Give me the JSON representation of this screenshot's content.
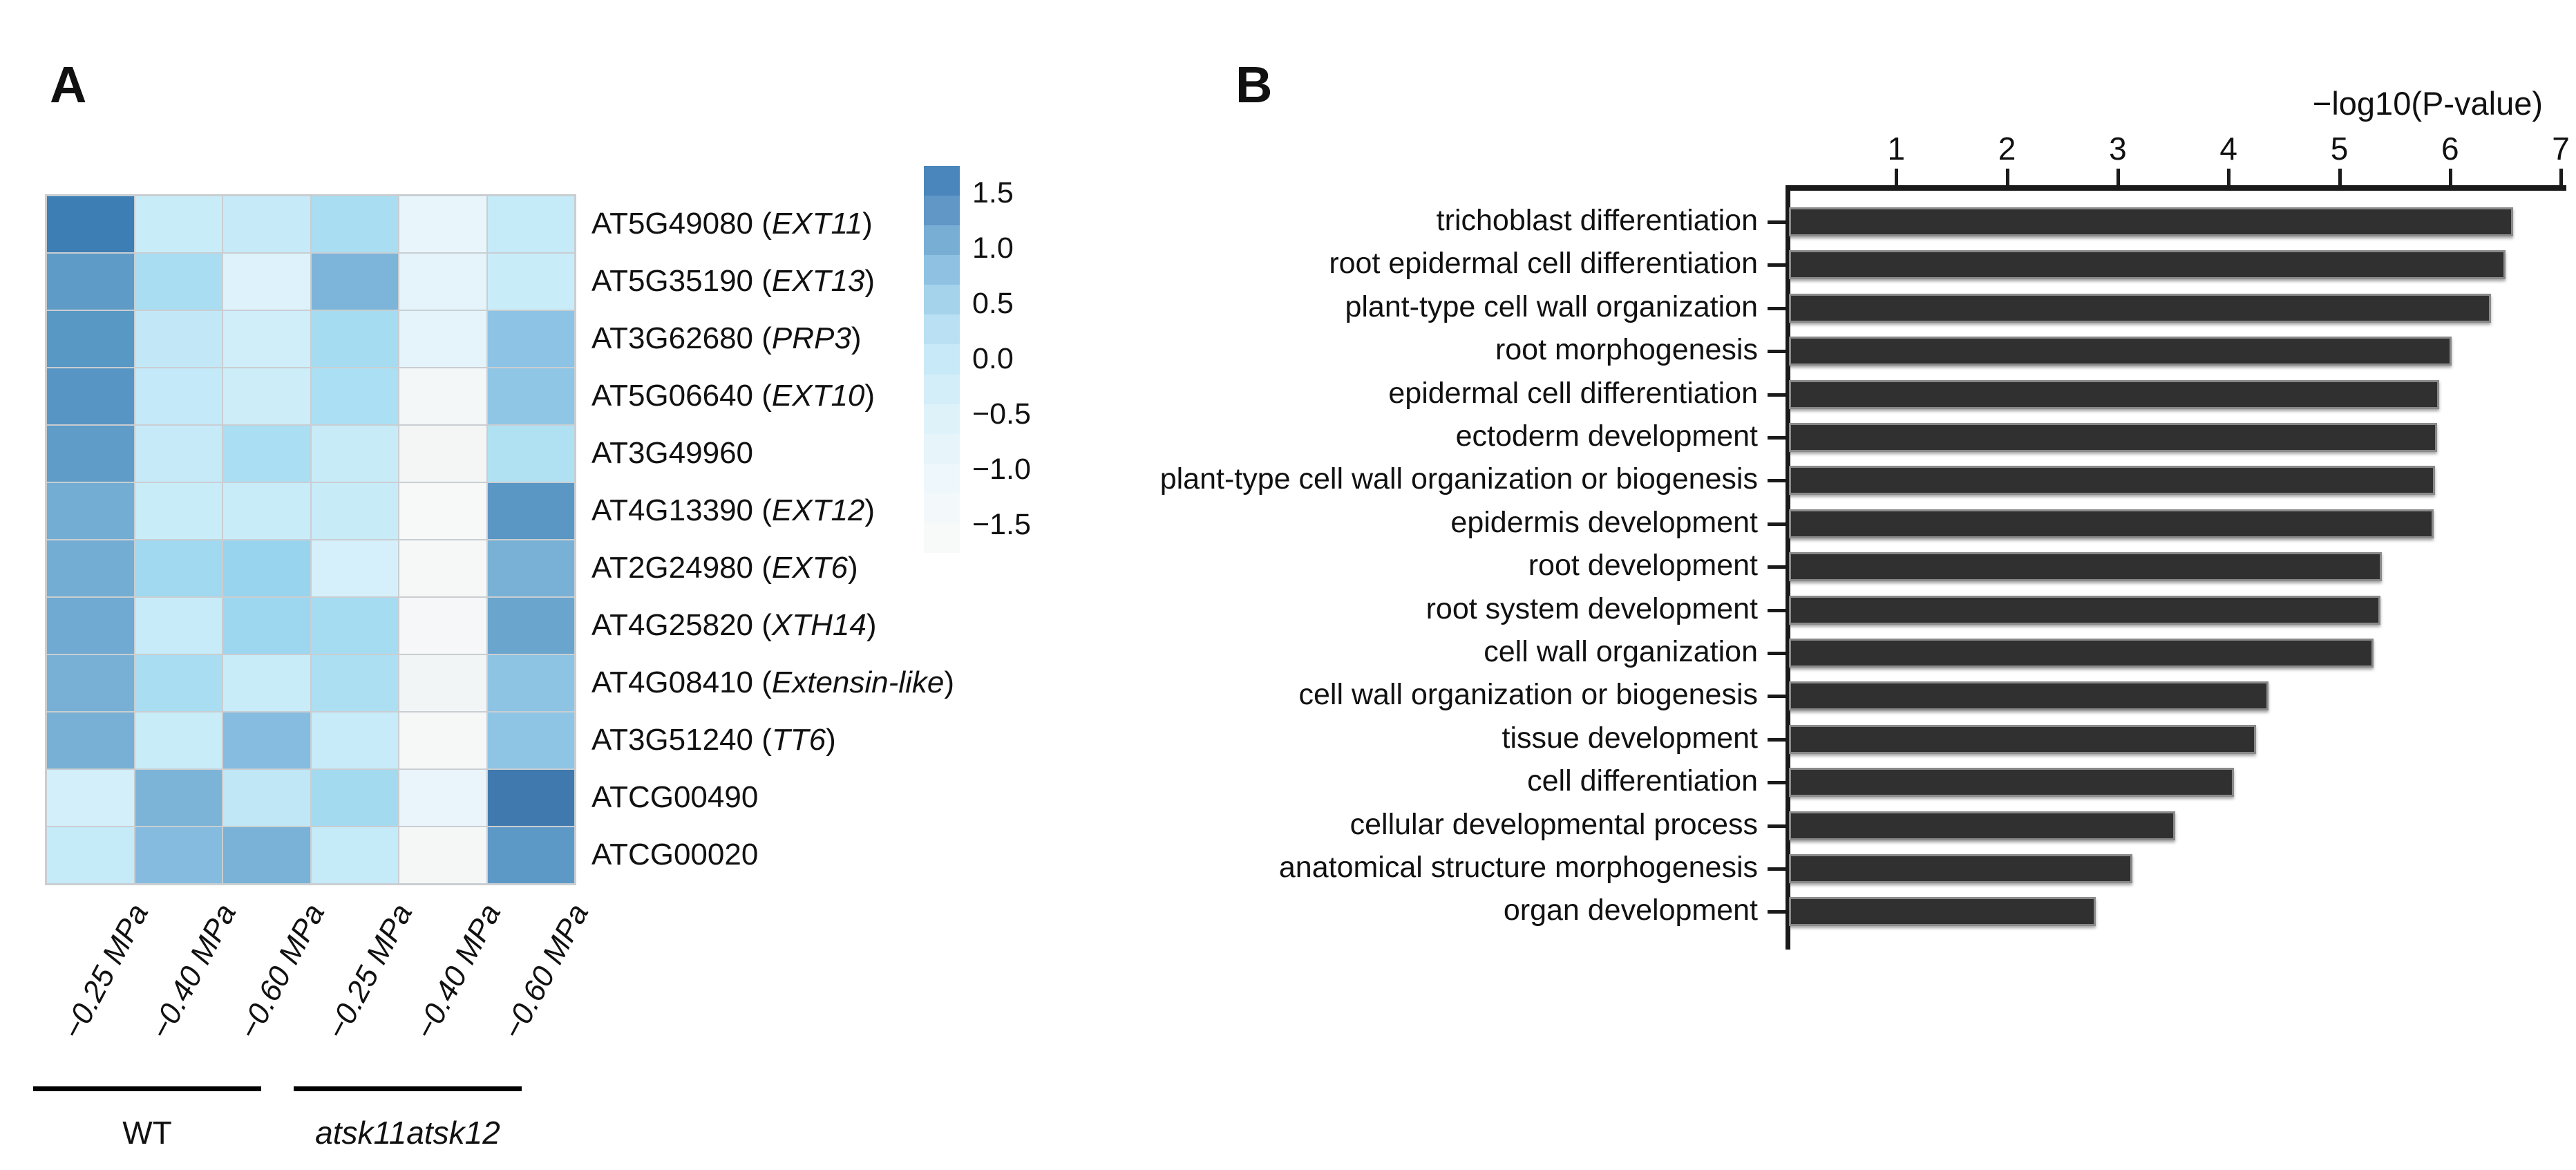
{
  "panel_a": {
    "label": "A",
    "columns": [
      "−0.25 MPa",
      "−0.40 MPa",
      "−0.60 MPa",
      "−0.25 MPa",
      "−0.40 MPa",
      "−0.60 MPa"
    ],
    "groups": [
      {
        "label": "WT",
        "italic": false
      },
      {
        "label": "atsk11atsk12",
        "italic": true
      }
    ],
    "rows": [
      {
        "locus": "AT5G49080",
        "gene": "EXT11",
        "cells": [
          "#3d7eb4",
          "#c9ecf9",
          "#c7eaf8",
          "#a8ddf2",
          "#e8f6fb",
          "#c5eaf8"
        ],
        "values": [
          1.8,
          0.2,
          0.2,
          0.5,
          -0.4,
          0.2
        ]
      },
      {
        "locus": "AT5G35190",
        "gene": "EXT13",
        "cells": [
          "#5f9bc7",
          "#a9def2",
          "#ddf2fa",
          "#7db4da",
          "#e4f4fa",
          "#c9ecf9"
        ],
        "values": [
          1.2,
          0.5,
          -0.1,
          1.0,
          -0.3,
          0.2
        ]
      },
      {
        "locus": "AT3G62680",
        "gene": "PRP3",
        "cells": [
          "#5898c5",
          "#c2e8f7",
          "#cfeef9",
          "#a5dcf1",
          "#e5f4fb",
          "#8dc3e4"
        ],
        "values": [
          1.3,
          0.3,
          0.1,
          0.5,
          -0.3,
          0.8
        ]
      },
      {
        "locus": "AT5G06640",
        "gene": "EXT10",
        "cells": [
          "#5796c4",
          "#c4e9f8",
          "#cdedf9",
          "#abdff3",
          "#f4f7f7",
          "#8fc5e5"
        ],
        "values": [
          1.3,
          0.2,
          0.1,
          0.4,
          -1.1,
          0.7
        ]
      },
      {
        "locus": "AT3G49960",
        "gene": null,
        "cells": [
          "#5f9cc8",
          "#c6eaf8",
          "#aadef2",
          "#c8ebf8",
          "#f4f6f6",
          "#b0e1f3"
        ],
        "values": [
          1.2,
          0.2,
          0.5,
          0.2,
          -1.1,
          0.4
        ]
      },
      {
        "locus": "AT4G13390",
        "gene": "EXT12",
        "cells": [
          "#74add3",
          "#c9ecf9",
          "#c9ecf9",
          "#c8ebf8",
          "#f7f9f9",
          "#5b97c4"
        ],
        "values": [
          1.1,
          0.2,
          0.2,
          0.2,
          -1.3,
          1.3
        ]
      },
      {
        "locus": "AT2G24980",
        "gene": "EXT6",
        "cells": [
          "#74add3",
          "#a0d9f0",
          "#98d4ed",
          "#d5f0fa",
          "#f6f8f8",
          "#78b1d5"
        ],
        "values": [
          1.1,
          0.6,
          0.6,
          0.0,
          -1.2,
          1.0
        ]
      },
      {
        "locus": "AT4G25820",
        "gene": "XTH14",
        "cells": [
          "#70a9d1",
          "#c7ebf8",
          "#9dd7ef",
          "#a6dcf1",
          "#f5f7f8",
          "#6aa5ce"
        ],
        "values": [
          1.1,
          0.2,
          0.6,
          0.5,
          -1.2,
          1.1
        ]
      },
      {
        "locus": "AT4G08410",
        "gene": "Extensin-like",
        "cells": [
          "#77b0d4",
          "#a8ddf2",
          "#c9ecf9",
          "#addff3",
          "#f2f5f6",
          "#8dc4e4"
        ],
        "values": [
          1.0,
          0.5,
          0.2,
          0.4,
          -0.9,
          0.8
        ]
      },
      {
        "locus": "AT3G51240",
        "gene": "TT6",
        "cells": [
          "#77b0d4",
          "#c9ecf9",
          "#85bcdf",
          "#c7ebf8",
          "#f6f8f8",
          "#8ec5e5"
        ],
        "values": [
          1.0,
          0.2,
          0.9,
          0.2,
          -1.3,
          0.7
        ]
      },
      {
        "locus": "ATCG00490",
        "gene": null,
        "cells": [
          "#d2effa",
          "#7cb4d8",
          "#bfe7f6",
          "#a3daf0",
          "#e9f5fb",
          "#4079ae"
        ],
        "values": [
          0.1,
          1.0,
          0.3,
          0.5,
          -0.4,
          1.7
        ]
      },
      {
        "locus": "ATCG00020",
        "gene": null,
        "cells": [
          "#c5eaf8",
          "#84bbde",
          "#79b2d6",
          "#c5eaf8",
          "#f5f7f7",
          "#5d99c6"
        ],
        "values": [
          0.2,
          0.9,
          1.0,
          0.2,
          -1.1,
          1.3
        ]
      }
    ],
    "colorbar": {
      "tick_labels": [
        "1.5",
        "1.0",
        "0.5",
        "0.0",
        "−0.5",
        "−1.0",
        "−1.5"
      ],
      "tick_values": [
        1.5,
        1.0,
        0.5,
        0.0,
        -0.5,
        -1.0,
        -1.5
      ],
      "range": [
        1.75,
        -1.75
      ],
      "stops": [
        "#4a86bb",
        "#6097c7",
        "#79aed4",
        "#8fc2e2",
        "#a5d3ec",
        "#b9e0f3",
        "#c8e9f7",
        "#d4eef9",
        "#def2fa",
        "#e7f5fb",
        "#eef8fc",
        "#f3f9fb",
        "#f8fafa"
      ]
    }
  },
  "panel_b": {
    "label": "B",
    "axis_title": "−log10(P-value)",
    "x_ticks": [
      "1",
      "2",
      "3",
      "4",
      "5",
      "6",
      "7"
    ],
    "bar_color": "#303030",
    "bars": [
      {
        "label": "trichoblast differentiation",
        "value": 6.54
      },
      {
        "label": "root epidermal cell differentiation",
        "value": 6.47
      },
      {
        "label": "plant-type cell wall organization",
        "value": 6.34
      },
      {
        "label": "root morphogenesis",
        "value": 5.98
      },
      {
        "label": "epidermal cell differentiation",
        "value": 5.87
      },
      {
        "label": "ectoderm development",
        "value": 5.85
      },
      {
        "label": "plant-type cell wall organization or biogenesis",
        "value": 5.83
      },
      {
        "label": "epidermis development",
        "value": 5.82
      },
      {
        "label": "root development",
        "value": 5.35
      },
      {
        "label": "root system development",
        "value": 5.34
      },
      {
        "label": "cell wall organization",
        "value": 5.28
      },
      {
        "label": "cell wall organization or biogenesis",
        "value": 4.33
      },
      {
        "label": "tissue development",
        "value": 4.22
      },
      {
        "label": "cell differentiation",
        "value": 4.02
      },
      {
        "label": "cellular developmental process",
        "value": 3.49
      },
      {
        "label": "anatomical structure morphogenesis",
        "value": 3.1
      },
      {
        "label": "organ development",
        "value": 2.77
      }
    ]
  },
  "chart_data": [
    {
      "type": "heatmap",
      "title": "",
      "x_categories": [
        "WT −0.25 MPa",
        "WT −0.40 MPa",
        "WT −0.60 MPa",
        "atsk11atsk12 −0.25 MPa",
        "atsk11atsk12 −0.40 MPa",
        "atsk11atsk12 −0.60 MPa"
      ],
      "y_categories": [
        "AT5G49080 (EXT11)",
        "AT5G35190 (EXT13)",
        "AT3G62680 (PRP3)",
        "AT5G06640 (EXT10)",
        "AT3G49960",
        "AT4G13390 (EXT12)",
        "AT2G24980 (EXT6)",
        "AT4G25820 (XTH14)",
        "AT4G08410 (Extensin-like)",
        "AT3G51240 (TT6)",
        "ATCG00490",
        "ATCG00020"
      ],
      "values": [
        [
          1.8,
          0.2,
          0.2,
          0.5,
          -0.4,
          0.2
        ],
        [
          1.2,
          0.5,
          -0.1,
          1.0,
          -0.3,
          0.2
        ],
        [
          1.3,
          0.3,
          0.1,
          0.5,
          -0.3,
          0.8
        ],
        [
          1.3,
          0.2,
          0.1,
          0.4,
          -1.1,
          0.7
        ],
        [
          1.2,
          0.2,
          0.5,
          0.2,
          -1.1,
          0.4
        ],
        [
          1.1,
          0.2,
          0.2,
          0.2,
          -1.3,
          1.3
        ],
        [
          1.1,
          0.6,
          0.6,
          0.0,
          -1.2,
          1.0
        ],
        [
          1.1,
          0.2,
          0.6,
          0.5,
          -1.2,
          1.1
        ],
        [
          1.0,
          0.5,
          0.2,
          0.4,
          -0.9,
          0.8
        ],
        [
          1.0,
          0.2,
          0.9,
          0.2,
          -1.3,
          0.7
        ],
        [
          0.1,
          1.0,
          0.3,
          0.5,
          -0.4,
          1.7
        ],
        [
          0.2,
          0.9,
          1.0,
          0.2,
          -1.1,
          1.3
        ]
      ],
      "colorscale": "Blues (light = low, dark = high)",
      "legend_ticks": [
        1.5,
        1.0,
        0.5,
        0.0,
        -0.5,
        -1.0,
        -1.5
      ]
    },
    {
      "type": "bar",
      "orientation": "horizontal",
      "title": "−log10(P-value)",
      "xlabel": "−log10(P-value)",
      "ylabel": "",
      "xlim": [
        0,
        7
      ],
      "x_tick_labels": [
        1,
        2,
        3,
        4,
        5,
        6,
        7
      ],
      "categories": [
        "trichoblast differentiation",
        "root epidermal cell differentiation",
        "plant-type cell wall organization",
        "root morphogenesis",
        "epidermal cell differentiation",
        "ectoderm development",
        "plant-type cell wall organization or biogenesis",
        "epidermis development",
        "root development",
        "root system development",
        "cell wall organization",
        "cell wall organization or biogenesis",
        "tissue development",
        "cell differentiation",
        "cellular developmental process",
        "anatomical structure morphogenesis",
        "organ development"
      ],
      "values": [
        6.54,
        6.47,
        6.34,
        5.98,
        5.87,
        5.85,
        5.83,
        5.82,
        5.35,
        5.34,
        5.28,
        4.33,
        4.22,
        4.02,
        3.49,
        3.1,
        2.77
      ]
    }
  ]
}
